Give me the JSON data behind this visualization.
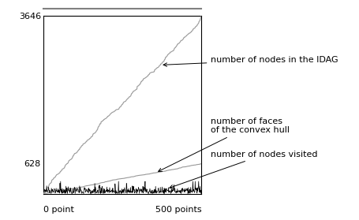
{
  "n_points": 500,
  "y_max": 3646,
  "y_tick_top": 3646,
  "y_tick_bottom": 628,
  "xlabel_left": "0 point",
  "xlabel_right": "500 points",
  "label_idag": "number of nodes in the IDAG",
  "label_faces": "number of faces\nof the convex hull",
  "label_visited": "number of nodes visited",
  "line_color": "#999999",
  "noise_color": "#000000",
  "background_color": "#ffffff",
  "seed": 12345,
  "fontsize": 8
}
